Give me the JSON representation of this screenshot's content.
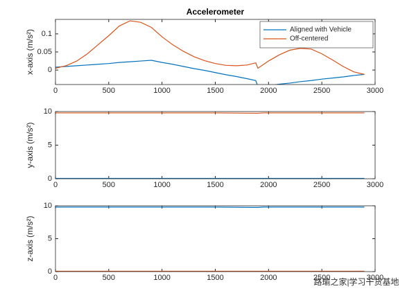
{
  "watermark": "路瑜之家|学习干货基地",
  "chart_data": [
    {
      "type": "line",
      "title": "Accelerometer",
      "ylabel": "x-axis (m/s²)",
      "x": [
        0,
        100,
        200,
        300,
        400,
        500,
        600,
        700,
        800,
        900,
        1000,
        1100,
        1200,
        1300,
        1400,
        1500,
        1600,
        1700,
        1800,
        1880,
        1900,
        1950,
        2000,
        2100,
        2200,
        2300,
        2400,
        2500,
        2600,
        2700,
        2800,
        2900
      ],
      "series": [
        {
          "name": "Aligned with Vehicle",
          "color": "#0072BD",
          "values": [
            0.008,
            0.01,
            0.012,
            0.014,
            0.016,
            0.018,
            0.021,
            0.023,
            0.025,
            0.027,
            0.021,
            0.016,
            0.01,
            0.004,
            -0.001,
            -0.007,
            -0.013,
            -0.018,
            -0.024,
            -0.029,
            -0.045,
            -0.044,
            -0.043,
            -0.039,
            -0.036,
            -0.032,
            -0.029,
            -0.025,
            -0.022,
            -0.019,
            -0.015,
            -0.012
          ]
        },
        {
          "name": "Off-centered",
          "color": "#D95319",
          "values": [
            0.005,
            0.012,
            0.025,
            0.045,
            0.07,
            0.095,
            0.122,
            0.136,
            0.132,
            0.118,
            0.092,
            0.07,
            0.052,
            0.037,
            0.026,
            0.018,
            0.013,
            0.012,
            0.014,
            0.02,
            0.005,
            0.015,
            0.025,
            0.042,
            0.055,
            0.06,
            0.058,
            0.045,
            0.028,
            0.01,
            -0.005,
            -0.012
          ]
        }
      ],
      "xlim": [
        0,
        3000
      ],
      "xticks": [
        0,
        500,
        1000,
        1500,
        2000,
        2500,
        3000
      ],
      "ylim": [
        -0.04,
        0.14
      ],
      "yticks": [
        0,
        0.05,
        0.1
      ],
      "legend": "northeast"
    },
    {
      "type": "line",
      "ylabel": "y-axis (m/s²)",
      "x": [
        0,
        500,
        1000,
        1500,
        1880,
        1900,
        1950,
        2500,
        2900
      ],
      "series": [
        {
          "color": "#0072BD",
          "values": [
            0.05,
            0.05,
            0.05,
            0.05,
            0.05,
            0.05,
            0.05,
            0.05,
            0.05
          ]
        },
        {
          "color": "#D95319",
          "values": [
            9.8,
            9.8,
            9.8,
            9.8,
            9.75,
            9.75,
            9.8,
            9.8,
            9.8
          ]
        }
      ],
      "xlim": [
        0,
        3000
      ],
      "xticks": [
        0,
        500,
        1000,
        1500,
        2000,
        2500,
        3000
      ],
      "ylim": [
        0,
        10
      ],
      "yticks": [
        0,
        5,
        10
      ]
    },
    {
      "type": "line",
      "ylabel": "z-axis (m/s²)",
      "x": [
        0,
        500,
        1000,
        1500,
        1880,
        1900,
        1950,
        2500,
        2900
      ],
      "series": [
        {
          "color": "#0072BD",
          "values": [
            9.8,
            9.8,
            9.8,
            9.8,
            9.75,
            9.75,
            9.8,
            9.8,
            9.8
          ]
        },
        {
          "color": "#D95319",
          "values": [
            0.05,
            0.05,
            0.05,
            0.05,
            0.05,
            0.05,
            0.05,
            0.05,
            0.05
          ]
        }
      ],
      "xlim": [
        0,
        3000
      ],
      "xticks": [
        0,
        500,
        1000,
        1500,
        2000,
        2500,
        3000
      ],
      "ylim": [
        0,
        10
      ],
      "yticks": [
        0,
        5,
        10
      ]
    }
  ]
}
